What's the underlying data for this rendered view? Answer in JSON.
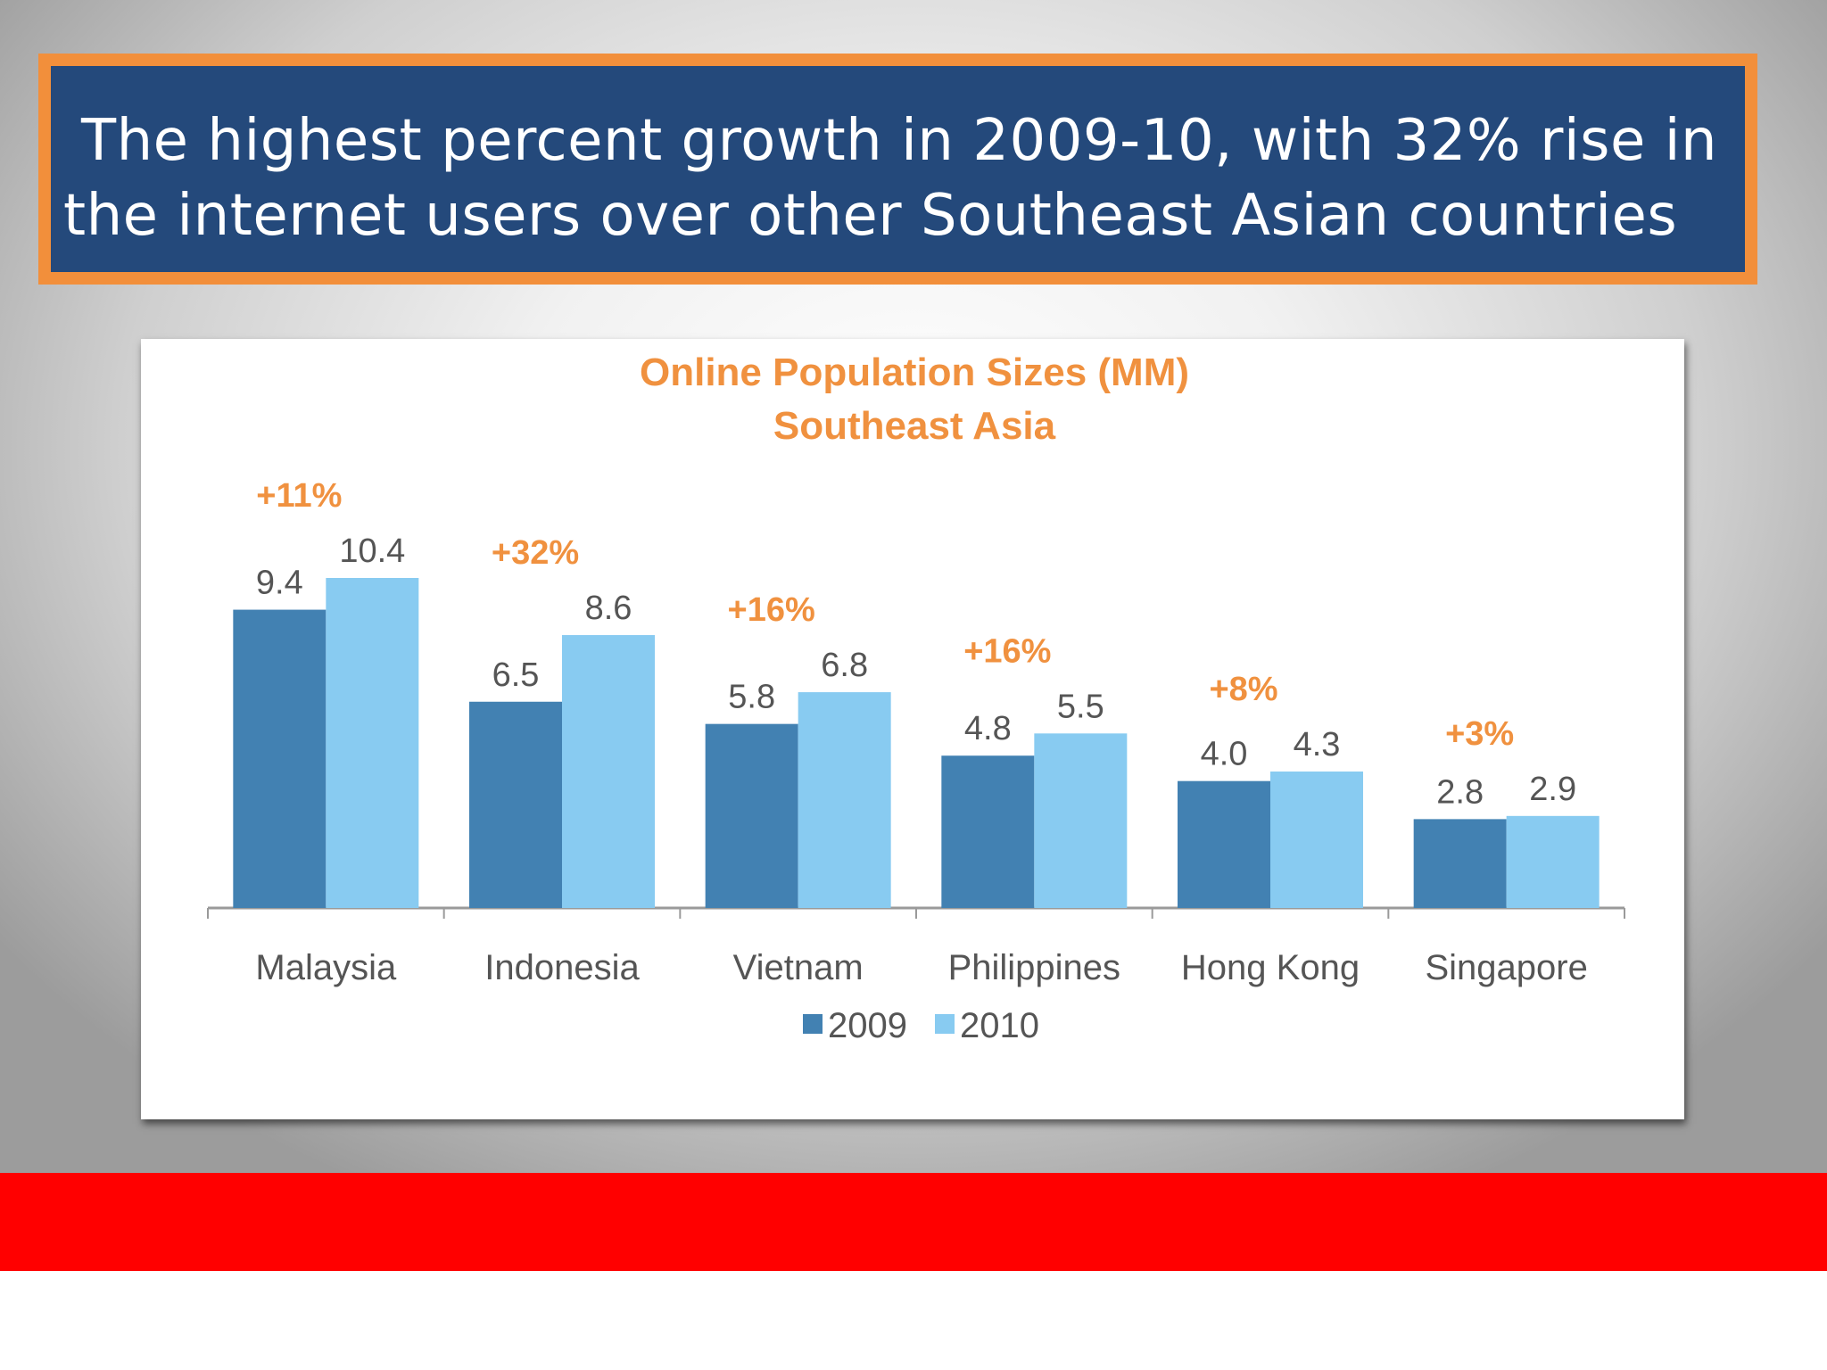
{
  "headline": {
    "text": "The highest percent growth in 2009-10, with 32% rise in the internet users over other Southeast Asian countries"
  },
  "colors": {
    "headline_bg": "#24497b",
    "headline_border": "#f28f3b",
    "chart_title": "#f0913f",
    "growth_label": "#f0913f",
    "series_2009": "#4281b2",
    "series_2010": "#88cbf1",
    "bottom_bar": "#ff0000"
  },
  "chart_data": {
    "type": "bar",
    "title": "Online Population Sizes (MM)",
    "subtitle": "Southeast Asia",
    "categories": [
      "Malaysia",
      "Indonesia",
      "Vietnam",
      "Philippines",
      "Hong Kong",
      "Singapore"
    ],
    "series": [
      {
        "name": "2009",
        "values": [
          9.4,
          6.5,
          5.8,
          4.8,
          4.0,
          2.8
        ],
        "labels": [
          "9.4",
          "6.5",
          "5.8",
          "4.8",
          "4.0",
          "2.8"
        ],
        "color": "#4281b2"
      },
      {
        "name": "2010",
        "values": [
          10.4,
          8.6,
          6.8,
          5.5,
          4.3,
          2.9
        ],
        "labels": [
          "10.4",
          "8.6",
          "6.8",
          "5.5",
          "4.3",
          "2.9"
        ],
        "color": "#88cbf1"
      }
    ],
    "growth_labels": [
      "+11%",
      "+32%",
      "+16%",
      "+16%",
      "+8%",
      "+3%"
    ],
    "ylim": [
      0,
      10.4
    ],
    "legend": [
      "2009",
      "2010"
    ],
    "legend_position": "bottom-center",
    "grid": false
  }
}
